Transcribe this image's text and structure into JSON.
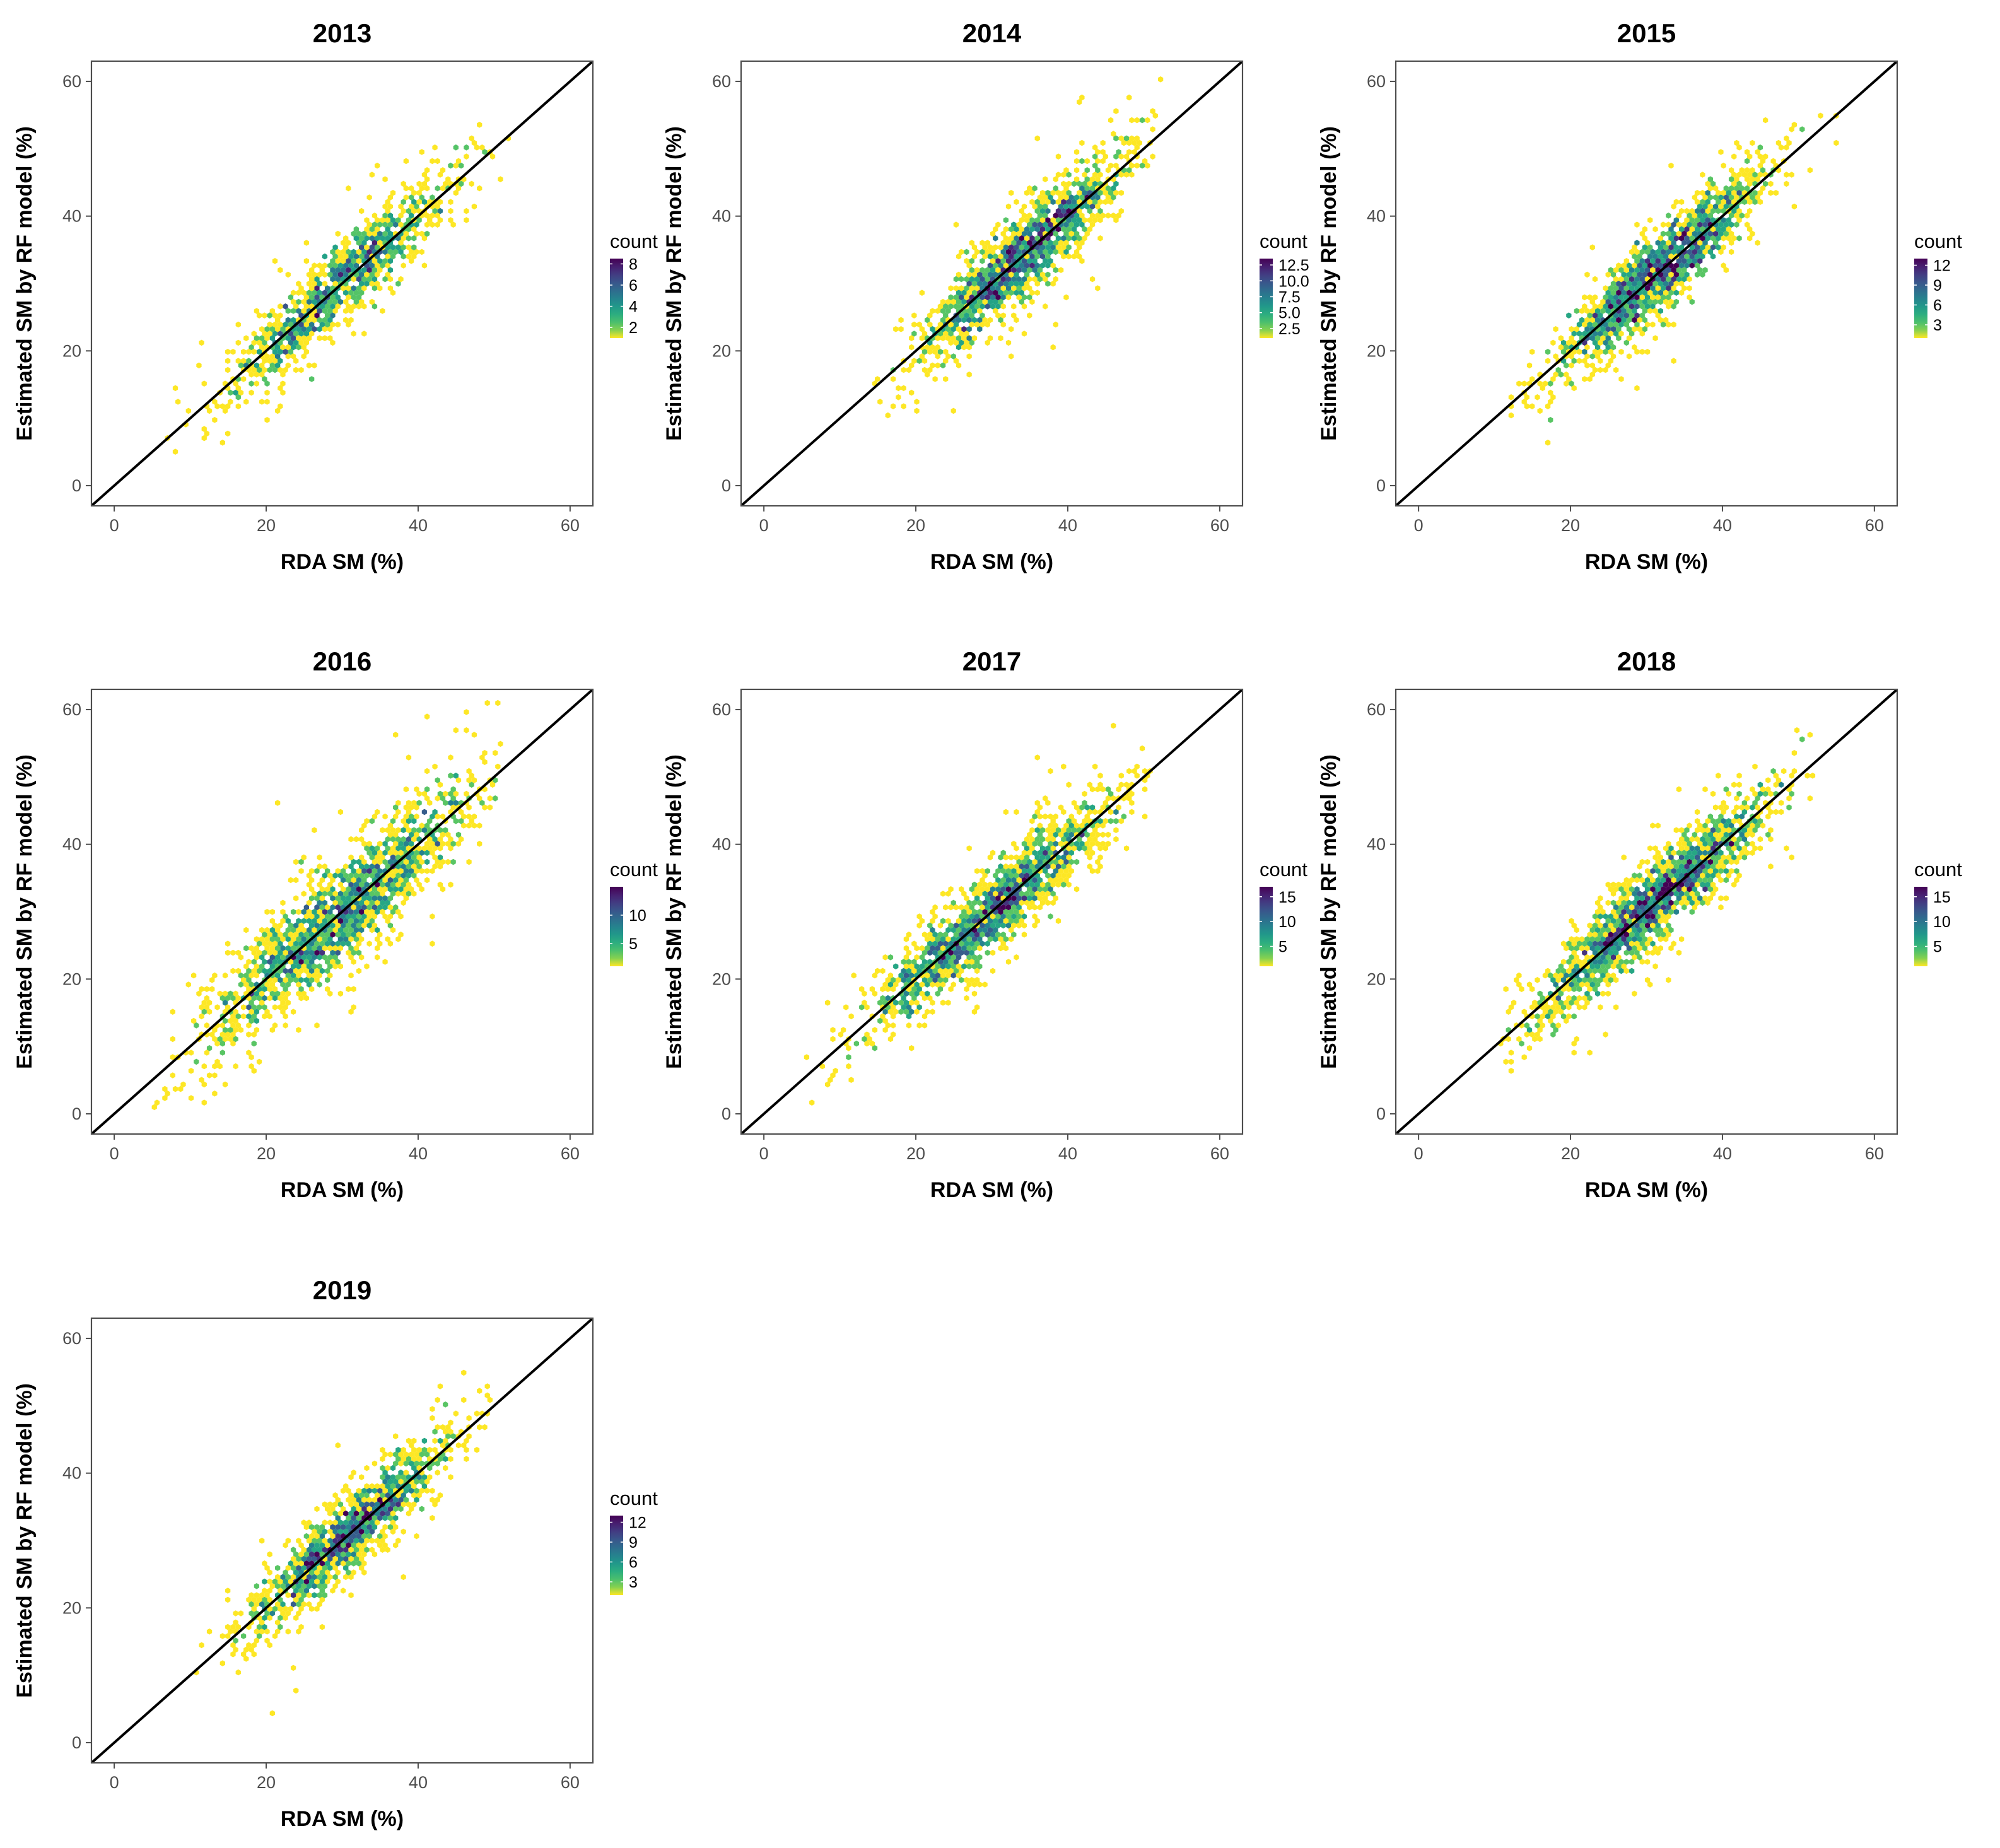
{
  "figure": {
    "description": "Hexbin density plots of RF-estimated vs RDA soil moisture by year"
  },
  "colors": {
    "low": "#fde725",
    "mid": "#21918c",
    "high": "#440154",
    "one_to_one_line": "#000000",
    "panel_border": "#4d4d4d"
  },
  "chart_data": [
    {
      "type": "hexbin-scatter",
      "title": "2013",
      "xlabel": "RDA SM (%)",
      "ylabel": "Estimated SM by RF model (%)",
      "xlim": [
        -3,
        63
      ],
      "ylim": [
        -3,
        63
      ],
      "xticks": [
        0,
        20,
        40,
        60
      ],
      "yticks": [
        0,
        20,
        40,
        60
      ],
      "grid": false,
      "reference_line": {
        "slope": 1,
        "intercept": 0
      },
      "cloud": {
        "x_center": 30,
        "x_sd": 7.5,
        "scatter_sd": 3.0,
        "x_range": [
          7,
          55
        ],
        "n_points": 1100,
        "max_count": 8
      },
      "legend": {
        "title": "count",
        "labels": [
          "8",
          "6",
          "4",
          "2"
        ],
        "values": [
          8,
          6,
          4,
          2
        ],
        "min": 1,
        "max": 8.5
      }
    },
    {
      "type": "hexbin-scatter",
      "title": "2014",
      "xlabel": "RDA SM (%)",
      "ylabel": "Estimated SM by RF model (%)",
      "xlim": [
        -3,
        63
      ],
      "ylim": [
        -3,
        63
      ],
      "xticks": [
        0,
        20,
        40,
        60
      ],
      "yticks": [
        0,
        20,
        40,
        60
      ],
      "grid": false,
      "reference_line": {
        "slope": 1,
        "intercept": 0
      },
      "cloud": {
        "x_center": 34,
        "x_sd": 7.0,
        "scatter_sd": 3.2,
        "x_range": [
          14,
          53
        ],
        "n_points": 1500,
        "max_count": 13
      },
      "legend": {
        "title": "count",
        "labels": [
          "12.5",
          "10.0",
          "7.5",
          "5.0",
          "2.5"
        ],
        "values": [
          12.5,
          10.0,
          7.5,
          5.0,
          2.5
        ],
        "min": 1,
        "max": 13.5
      }
    },
    {
      "type": "hexbin-scatter",
      "title": "2015",
      "xlabel": "RDA SM (%)",
      "ylabel": "Estimated SM by RF model (%)",
      "xlim": [
        -3,
        63
      ],
      "ylim": [
        -3,
        63
      ],
      "xticks": [
        0,
        20,
        40,
        60
      ],
      "yticks": [
        0,
        20,
        40,
        60
      ],
      "grid": false,
      "reference_line": {
        "slope": 1,
        "intercept": 0
      },
      "cloud": {
        "x_center": 32,
        "x_sd": 7.0,
        "scatter_sd": 3.0,
        "x_range": [
          12,
          57
        ],
        "n_points": 1600,
        "max_count": 12
      },
      "legend": {
        "title": "count",
        "labels": [
          "12",
          "9",
          "6",
          "3"
        ],
        "values": [
          12,
          9,
          6,
          3
        ],
        "min": 1,
        "max": 13
      }
    },
    {
      "type": "hexbin-scatter",
      "title": "2016",
      "xlabel": "RDA SM (%)",
      "ylabel": "Estimated SM by RF model (%)",
      "xlim": [
        -3,
        63
      ],
      "ylim": [
        -3,
        63
      ],
      "xticks": [
        0,
        20,
        40,
        60
      ],
      "yticks": [
        0,
        20,
        40,
        60
      ],
      "grid": false,
      "reference_line": {
        "slope": 1,
        "intercept": 0
      },
      "cloud": {
        "x_center": 30,
        "x_sd": 9.0,
        "scatter_sd": 3.8,
        "x_range": [
          5,
          51
        ],
        "n_points": 1800,
        "max_count": 14
      },
      "legend": {
        "title": "count",
        "labels": [
          "10",
          "5"
        ],
        "values": [
          10,
          5
        ],
        "min": 1,
        "max": 15
      }
    },
    {
      "type": "hexbin-scatter",
      "title": "2017",
      "xlabel": "RDA SM (%)",
      "ylabel": "Estimated SM by RF model (%)",
      "xlim": [
        -3,
        63
      ],
      "ylim": [
        -3,
        63
      ],
      "xticks": [
        0,
        20,
        40,
        60
      ],
      "yticks": [
        0,
        20,
        40,
        60
      ],
      "grid": false,
      "reference_line": {
        "slope": 1,
        "intercept": 0
      },
      "cloud": {
        "x_center": 30,
        "x_sd": 8.0,
        "scatter_sd": 3.0,
        "x_range": [
          5,
          52
        ],
        "n_points": 1600,
        "max_count": 16
      },
      "legend": {
        "title": "count",
        "labels": [
          "15",
          "10",
          "5"
        ],
        "values": [
          15,
          10,
          5
        ],
        "min": 1,
        "max": 17
      }
    },
    {
      "type": "hexbin-scatter",
      "title": "2018",
      "xlabel": "RDA SM (%)",
      "ylabel": "Estimated SM by RF model (%)",
      "xlim": [
        -3,
        63
      ],
      "ylim": [
        -3,
        63
      ],
      "xticks": [
        0,
        20,
        40,
        60
      ],
      "yticks": [
        0,
        20,
        40,
        60
      ],
      "grid": false,
      "reference_line": {
        "slope": 1,
        "intercept": 0
      },
      "cloud": {
        "x_center": 31,
        "x_sd": 8.0,
        "scatter_sd": 3.0,
        "x_range": [
          11,
          52
        ],
        "n_points": 1800,
        "max_count": 16
      },
      "legend": {
        "title": "count",
        "labels": [
          "15",
          "10",
          "5"
        ],
        "values": [
          15,
          10,
          5
        ],
        "min": 1,
        "max": 17
      }
    },
    {
      "type": "hexbin-scatter",
      "title": "2019",
      "xlabel": "RDA SM (%)",
      "ylabel": "Estimated SM by RF model (%)",
      "xlim": [
        -3,
        63
      ],
      "ylim": [
        -3,
        63
      ],
      "xticks": [
        0,
        20,
        40,
        60
      ],
      "yticks": [
        0,
        20,
        40,
        60
      ],
      "grid": false,
      "reference_line": {
        "slope": 1,
        "intercept": 0
      },
      "cloud": {
        "x_center": 31,
        "x_sd": 6.5,
        "scatter_sd": 2.8,
        "x_range": [
          7,
          55
        ],
        "n_points": 1300,
        "max_count": 12
      },
      "legend": {
        "title": "count",
        "labels": [
          "12",
          "9",
          "6",
          "3"
        ],
        "values": [
          12,
          9,
          6,
          3
        ],
        "min": 1,
        "max": 13
      }
    }
  ]
}
